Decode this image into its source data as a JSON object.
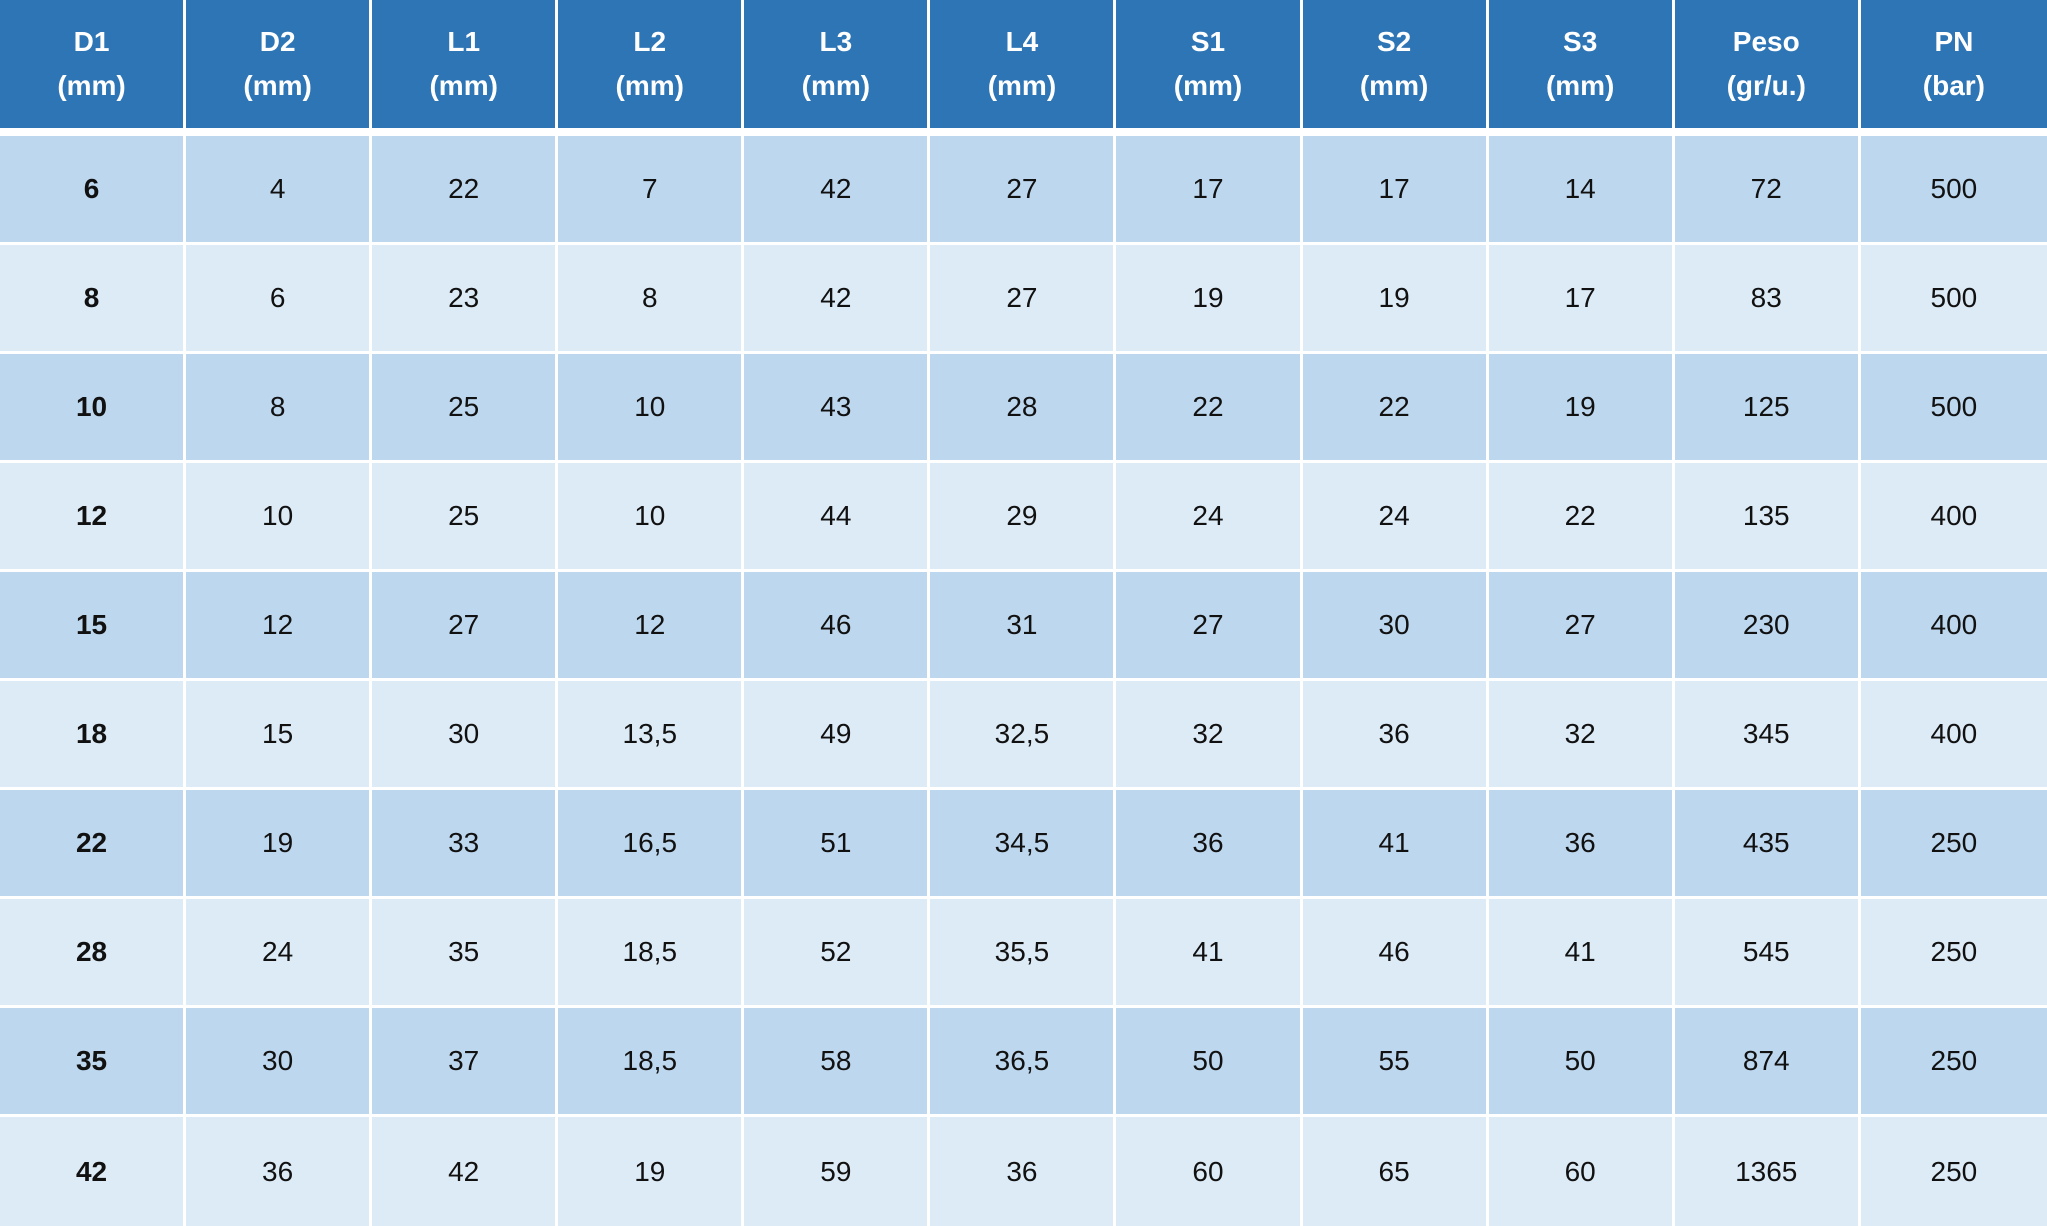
{
  "table": {
    "header": [
      [
        "D1",
        "(mm)"
      ],
      [
        "D2",
        "(mm)"
      ],
      [
        "L1",
        "(mm)"
      ],
      [
        "L2",
        "(mm)"
      ],
      [
        "L3",
        "(mm)"
      ],
      [
        "L4",
        "(mm)"
      ],
      [
        "S1",
        "(mm)"
      ],
      [
        "S2",
        "(mm)"
      ],
      [
        "S3",
        "(mm)"
      ],
      [
        "Peso",
        "(gr/u.)"
      ],
      [
        "PN",
        "(bar)"
      ]
    ],
    "rows": [
      [
        "6",
        "4",
        "22",
        "7",
        "42",
        "27",
        "17",
        "17",
        "14",
        "72",
        "500"
      ],
      [
        "8",
        "6",
        "23",
        "8",
        "42",
        "27",
        "19",
        "19",
        "17",
        "83",
        "500"
      ],
      [
        "10",
        "8",
        "25",
        "10",
        "43",
        "28",
        "22",
        "22",
        "19",
        "125",
        "500"
      ],
      [
        "12",
        "10",
        "25",
        "10",
        "44",
        "29",
        "24",
        "24",
        "22",
        "135",
        "400"
      ],
      [
        "15",
        "12",
        "27",
        "12",
        "46",
        "31",
        "27",
        "30",
        "27",
        "230",
        "400"
      ],
      [
        "18",
        "15",
        "30",
        "13,5",
        "49",
        "32,5",
        "32",
        "36",
        "32",
        "345",
        "400"
      ],
      [
        "22",
        "19",
        "33",
        "16,5",
        "51",
        "34,5",
        "36",
        "41",
        "36",
        "435",
        "250"
      ],
      [
        "28",
        "24",
        "35",
        "18,5",
        "52",
        "35,5",
        "41",
        "46",
        "41",
        "545",
        "250"
      ],
      [
        "35",
        "30",
        "37",
        "18,5",
        "58",
        "36,5",
        "50",
        "55",
        "50",
        "874",
        "250"
      ],
      [
        "42",
        "36",
        "42",
        "19",
        "59",
        "36",
        "60",
        "65",
        "60",
        "1365",
        "250"
      ]
    ]
  }
}
